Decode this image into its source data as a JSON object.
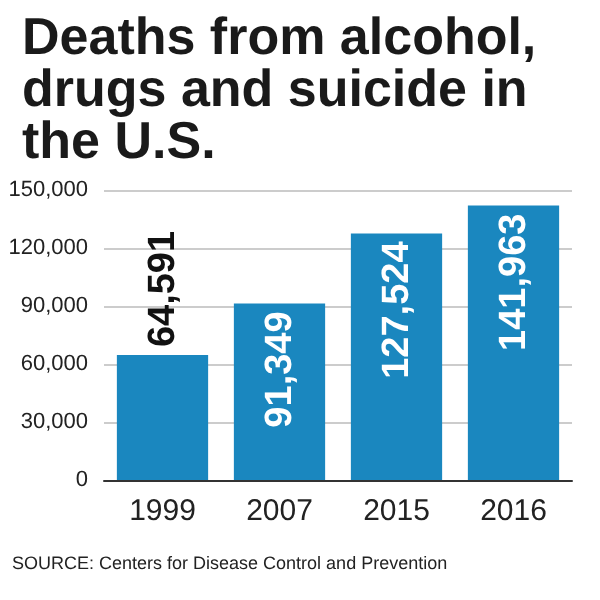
{
  "chart_data": {
    "type": "bar",
    "title": "Deaths from alcohol, drugs and suicide in the U.S.",
    "categories": [
      "1999",
      "2007",
      "2015",
      "2016"
    ],
    "values": [
      64591,
      91349,
      127524,
      141963
    ],
    "value_labels": [
      "64,591",
      "91,349",
      "127,524",
      "141,963"
    ],
    "color": "#1a87bf",
    "ylim": [
      0,
      150000
    ],
    "yticks": [
      0,
      {
        "value": 30000,
        "label": "30,000"
      },
      {
        "value": 60000,
        "label": "60,000"
      },
      {
        "value": 90000,
        "label": "90,000"
      },
      {
        "value": 120000,
        "label": "120,000"
      },
      {
        "value": 150000,
        "label": "150,000"
      }
    ],
    "grid": "y",
    "annotations": [
      "SOURCE: Centers for Disease Control and Prevention"
    ]
  }
}
